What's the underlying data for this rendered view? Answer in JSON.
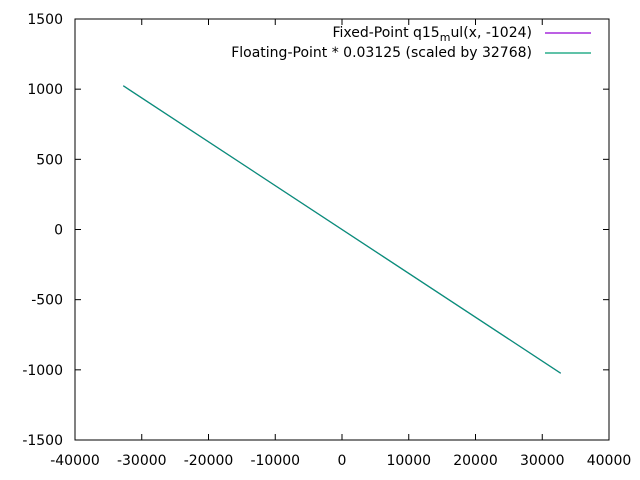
{
  "chart_data": {
    "type": "line",
    "title": "",
    "xlabel": "",
    "ylabel": "",
    "xlim": [
      -40000,
      40000
    ],
    "ylim": [
      -1500,
      1500
    ],
    "x_ticks": [
      -40000,
      -30000,
      -20000,
      -10000,
      0,
      10000,
      20000,
      30000,
      40000
    ],
    "y_ticks": [
      -1500,
      -1000,
      -500,
      0,
      500,
      1000,
      1500
    ],
    "x_tick_labels": [
      "-40000",
      "-30000",
      "-20000",
      "-10000",
      "0",
      "10000",
      "20000",
      "30000",
      "40000"
    ],
    "y_tick_labels": [
      "-1500",
      "-1000",
      "-500",
      "0",
      "500",
      "1000",
      "1500"
    ],
    "grid": false,
    "legend_position": "top-right",
    "series": [
      {
        "name": "Fixed-Point q15",
        "name_sub": "m",
        "name_tail": "ul(x, -1024)",
        "color": "#9400d3",
        "x": [
          -32768,
          32767
        ],
        "y": [
          1024,
          -1024
        ]
      },
      {
        "name": "Floating-Point * 0.03125 (scaled by 32768)",
        "color": "#009e73",
        "x": [
          -32768,
          32767
        ],
        "y": [
          1024,
          -1024
        ]
      }
    ]
  }
}
